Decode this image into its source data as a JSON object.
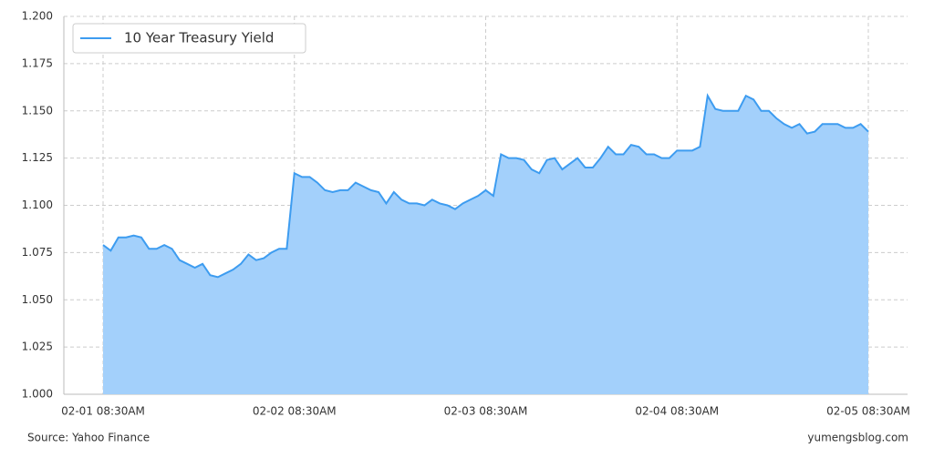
{
  "chart_data": {
    "type": "area",
    "series": [
      {
        "name": "10 Year Treasury Yield",
        "color": "#3d9cf0",
        "fill": "#a3d0fb",
        "values": [
          1.079,
          1.076,
          1.083,
          1.083,
          1.084,
          1.083,
          1.077,
          1.077,
          1.079,
          1.077,
          1.071,
          1.069,
          1.067,
          1.069,
          1.063,
          1.062,
          1.064,
          1.066,
          1.069,
          1.074,
          1.071,
          1.072,
          1.075,
          1.077,
          1.077,
          1.117,
          1.115,
          1.115,
          1.112,
          1.108,
          1.107,
          1.108,
          1.108,
          1.112,
          1.11,
          1.108,
          1.107,
          1.101,
          1.107,
          1.103,
          1.101,
          1.101,
          1.1,
          1.103,
          1.101,
          1.1,
          1.098,
          1.101,
          1.103,
          1.105,
          1.108,
          1.105,
          1.127,
          1.125,
          1.125,
          1.124,
          1.119,
          1.117,
          1.124,
          1.125,
          1.119,
          1.122,
          1.125,
          1.12,
          1.12,
          1.125,
          1.131,
          1.127,
          1.127,
          1.132,
          1.131,
          1.127,
          1.127,
          1.125,
          1.125,
          1.129,
          1.129,
          1.129,
          1.131,
          1.158,
          1.151,
          1.15,
          1.15,
          1.15,
          1.158,
          1.156,
          1.15,
          1.15,
          1.146,
          1.143,
          1.141,
          1.143,
          1.138,
          1.139,
          1.143,
          1.143,
          1.143,
          1.141,
          1.141,
          1.143,
          1.139
        ]
      }
    ],
    "categories": [
      "02-01 08:30AM",
      null,
      null,
      null,
      null,
      null,
      null,
      null,
      null,
      null,
      null,
      null,
      null,
      null,
      null,
      null,
      null,
      null,
      null,
      null,
      null,
      null,
      null,
      null,
      null,
      "02-02 08:30AM",
      null,
      null,
      null,
      null,
      null,
      null,
      null,
      null,
      null,
      null,
      null,
      null,
      null,
      null,
      null,
      null,
      null,
      null,
      null,
      null,
      null,
      null,
      null,
      null,
      "02-03 08:30AM",
      null,
      null,
      null,
      null,
      null,
      null,
      null,
      null,
      null,
      null,
      null,
      null,
      null,
      null,
      null,
      null,
      null,
      null,
      null,
      null,
      null,
      null,
      null,
      null,
      "02-04 08:30AM",
      null,
      null,
      null,
      null,
      null,
      null,
      null,
      null,
      null,
      null,
      null,
      null,
      null,
      null,
      null,
      null,
      null,
      null,
      null,
      null,
      null,
      null,
      null,
      null,
      "02-05 08:30AM"
    ],
    "ylim": [
      1.0,
      1.2
    ],
    "yticks": [
      {
        "value": 1.0,
        "label": "1.000"
      },
      1.025,
      {
        "value": 1.05,
        "label": "1.050"
      },
      1.075,
      {
        "value": 1.1,
        "label": "1.100"
      },
      1.125,
      {
        "value": 1.15,
        "label": "1.150"
      },
      1.175,
      {
        "value": 1.2,
        "label": "1.200"
      }
    ],
    "grid": true,
    "legend": "upper left",
    "source": "Source: Yahoo Finance",
    "credit": "yumengsblog.com"
  }
}
